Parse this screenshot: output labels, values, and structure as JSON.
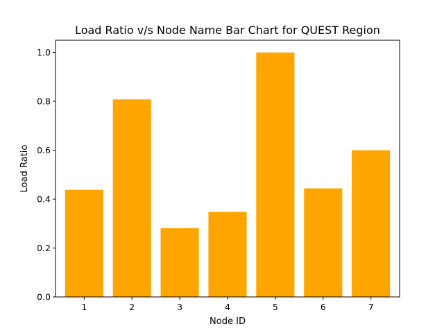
{
  "chart_data": {
    "type": "bar",
    "title": "Load Ratio v/s Node Name Bar Chart for QUEST Region",
    "xlabel": "Node ID",
    "ylabel": "Load Ratio",
    "categories": [
      "1",
      "2",
      "3",
      "4",
      "5",
      "6",
      "7"
    ],
    "values": [
      0.438,
      0.808,
      0.281,
      0.348,
      1.0,
      0.444,
      0.6
    ],
    "ylim": [
      0,
      1.05
    ],
    "yticks": [
      0.0,
      0.2,
      0.4,
      0.6,
      0.8,
      1.0
    ],
    "ytick_labels": [
      "0.0",
      "0.2",
      "0.4",
      "0.6",
      "0.8",
      "1.0"
    ],
    "bar_color": "#ffa500",
    "grid": false,
    "legend": "none"
  }
}
